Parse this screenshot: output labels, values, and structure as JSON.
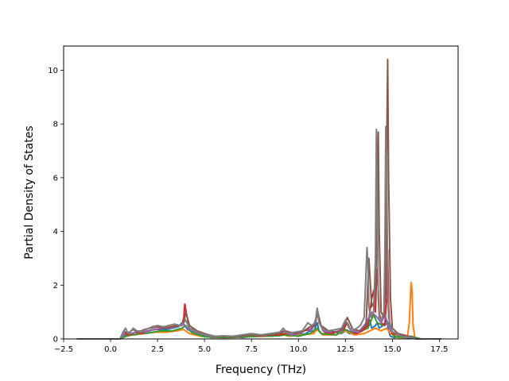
{
  "chart_data": {
    "type": "line",
    "title": "",
    "xlabel": "Frequency (THz)",
    "ylabel": "Partial Density of States",
    "xlim": [
      -2.5,
      18.5
    ],
    "ylim": [
      0,
      10.9
    ],
    "x_ticks": [
      -2.5,
      0.0,
      2.5,
      5.0,
      7.5,
      10.0,
      12.5,
      15.0,
      17.5
    ],
    "x_tick_labels": [
      "−2.5",
      "0.0",
      "2.5",
      "5.0",
      "7.5",
      "10.0",
      "12.5",
      "15.0",
      "17.5"
    ],
    "y_ticks": [
      0,
      2,
      4,
      6,
      8,
      10
    ],
    "y_tick_labels": [
      "0",
      "2",
      "4",
      "6",
      "8",
      "10"
    ],
    "grid": false,
    "legend": "none",
    "series": [
      {
        "color": "#1f77b4",
        "x": [
          -1.8,
          0.5,
          0.7,
          0.9,
          1.1,
          1.3,
          1.6,
          2.0,
          2.3,
          2.6,
          3.0,
          3.3,
          3.6,
          3.8,
          3.95,
          4.1,
          4.4,
          4.8,
          5.0,
          5.4,
          6.0,
          6.5,
          7.0,
          7.5,
          8.0,
          8.6,
          9.0,
          9.2,
          9.5,
          10.0,
          10.4,
          10.6,
          10.8,
          11.0,
          11.1,
          11.3,
          11.6,
          12.0,
          12.3,
          12.5,
          12.7,
          13.0,
          13.3,
          13.6,
          13.8,
          13.9,
          14.1,
          14.2,
          14.3,
          14.5,
          14.7,
          14.8,
          14.9,
          15.1,
          15.4,
          15.7,
          15.9,
          16.0,
          16.1,
          16.4,
          17.6
        ],
        "y": [
          0,
          0,
          0.15,
          0.1,
          0.2,
          0.15,
          0.2,
          0.3,
          0.35,
          0.35,
          0.35,
          0.4,
          0.45,
          0.6,
          0.5,
          0.35,
          0.25,
          0.15,
          0.1,
          0.05,
          0.08,
          0.1,
          0.05,
          0.1,
          0.12,
          0.1,
          0.15,
          0.2,
          0.12,
          0.15,
          0.2,
          0.3,
          0.25,
          0.6,
          0.3,
          0.15,
          0.3,
          0.25,
          0.2,
          0.3,
          0.2,
          0.2,
          0.3,
          0.5,
          0.7,
          0.4,
          0.5,
          0.6,
          0.4,
          0.5,
          0.7,
          0.3,
          0.1,
          0.05,
          0.1,
          0.05,
          0.02,
          0.05,
          0.02,
          0,
          0
        ]
      },
      {
        "color": "#ff7f0e",
        "x": [
          -1.8,
          0.5,
          0.8,
          1.2,
          1.8,
          2.4,
          3.0,
          3.5,
          3.9,
          4.2,
          4.8,
          5.5,
          6.5,
          7.5,
          8.5,
          9.0,
          9.5,
          10.2,
          10.8,
          11.0,
          11.3,
          12.0,
          12.5,
          13.0,
          13.5,
          13.8,
          14.1,
          14.4,
          14.7,
          14.9,
          15.3,
          15.8,
          15.9,
          16.0,
          16.05,
          16.1,
          16.2,
          16.5,
          17.6
        ],
        "y": [
          0,
          0,
          0.1,
          0.15,
          0.2,
          0.25,
          0.25,
          0.3,
          0.35,
          0.2,
          0.1,
          0.05,
          0.05,
          0.1,
          0.1,
          0.2,
          0.1,
          0.15,
          0.2,
          0.35,
          0.15,
          0.15,
          0.3,
          0.15,
          0.2,
          0.3,
          0.4,
          0.3,
          0.4,
          0.2,
          0.05,
          0.05,
          0.6,
          2.1,
          1.8,
          0.5,
          0.05,
          0,
          0
        ]
      },
      {
        "color": "#2ca02c",
        "x": [
          -1.8,
          0.5,
          0.9,
          1.4,
          2.0,
          2.7,
          3.3,
          3.8,
          4.0,
          4.3,
          5.0,
          6.0,
          7.0,
          8.0,
          9.0,
          9.3,
          10.0,
          10.6,
          11.0,
          11.2,
          12.0,
          12.5,
          13.0,
          13.7,
          14.0,
          14.2,
          14.5,
          14.8,
          15.1,
          15.6,
          16.0,
          16.5,
          17.6
        ],
        "y": [
          0,
          0,
          0.12,
          0.18,
          0.22,
          0.3,
          0.3,
          0.4,
          0.5,
          0.25,
          0.08,
          0.05,
          0.07,
          0.1,
          0.12,
          0.15,
          0.1,
          0.2,
          0.4,
          0.2,
          0.15,
          0.35,
          0.2,
          0.4,
          0.9,
          0.6,
          0.5,
          0.6,
          0.1,
          0.05,
          0.1,
          0,
          0
        ]
      },
      {
        "color": "#d62728",
        "x": [
          -1.8,
          0.5,
          0.7,
          1.0,
          1.3,
          1.7,
          2.0,
          2.4,
          2.8,
          3.2,
          3.5,
          3.8,
          3.9,
          3.95,
          4.05,
          4.2,
          4.5,
          4.8,
          5.0,
          5.5,
          6.0,
          6.5,
          7.0,
          7.5,
          8.0,
          8.5,
          9.0,
          9.3,
          9.7,
          10.0,
          10.3,
          10.6,
          10.9,
          11.0,
          11.1,
          11.4,
          11.8,
          12.2,
          12.4,
          12.6,
          12.8,
          13.1,
          13.4,
          13.7,
          13.9,
          14.0,
          14.05,
          14.1,
          14.15,
          14.2,
          14.25,
          14.3,
          14.4,
          14.6,
          14.7,
          14.75,
          14.8,
          14.85,
          14.9,
          15.0,
          15.3,
          15.7,
          16.0,
          16.3,
          17.6
        ],
        "y": [
          0,
          0,
          0.2,
          0.15,
          0.25,
          0.2,
          0.3,
          0.35,
          0.4,
          0.45,
          0.5,
          0.5,
          0.8,
          1.3,
          0.9,
          0.4,
          0.3,
          0.25,
          0.15,
          0.1,
          0.1,
          0.08,
          0.1,
          0.15,
          0.1,
          0.15,
          0.15,
          0.2,
          0.15,
          0.2,
          0.3,
          0.35,
          0.5,
          1.1,
          0.6,
          0.25,
          0.2,
          0.3,
          0.35,
          0.6,
          0.3,
          0.2,
          0.3,
          0.5,
          1.5,
          1.8,
          1.4,
          1.0,
          2.1,
          2.6,
          1.8,
          1.0,
          0.6,
          0.5,
          1.5,
          3.3,
          1.2,
          0.6,
          0.4,
          0.2,
          0.15,
          0.1,
          0.05,
          0,
          0
        ]
      },
      {
        "color": "#9467bd",
        "x": [
          -1.8,
          0.5,
          0.8,
          1.1,
          1.5,
          1.9,
          2.3,
          2.7,
          3.1,
          3.5,
          3.9,
          4.1,
          4.5,
          5.0,
          5.5,
          6.0,
          6.7,
          7.5,
          8.2,
          9.0,
          9.2,
          9.6,
          10.1,
          10.5,
          10.7,
          11.0,
          11.3,
          11.7,
          12.3,
          12.5,
          12.8,
          13.2,
          13.6,
          13.9,
          14.2,
          14.4,
          14.6,
          14.9,
          15.2,
          15.6,
          16.0,
          16.4,
          17.6
        ],
        "y": [
          0,
          0,
          0.25,
          0.2,
          0.3,
          0.25,
          0.35,
          0.4,
          0.4,
          0.45,
          0.55,
          0.4,
          0.25,
          0.15,
          0.08,
          0.1,
          0.08,
          0.15,
          0.12,
          0.2,
          0.3,
          0.15,
          0.2,
          0.4,
          0.3,
          0.9,
          0.3,
          0.25,
          0.3,
          0.7,
          0.3,
          0.25,
          0.6,
          1.0,
          0.8,
          0.6,
          0.9,
          0.3,
          0.2,
          0.08,
          0.05,
          0,
          0
        ]
      },
      {
        "color": "#8c564b",
        "x": [
          -1.8,
          0.5,
          0.7,
          0.9,
          1.2,
          1.5,
          1.8,
          2.1,
          2.5,
          2.9,
          3.3,
          3.7,
          3.9,
          4.0,
          4.2,
          4.6,
          5.0,
          5.5,
          6.0,
          6.8,
          7.5,
          8.2,
          9.0,
          9.3,
          9.8,
          10.2,
          10.6,
          10.9,
          11.0,
          11.2,
          11.6,
          12.0,
          12.4,
          12.6,
          12.9,
          13.3,
          13.6,
          13.75,
          13.9,
          14.1,
          14.2,
          14.25,
          14.3,
          14.4,
          14.55,
          14.65,
          14.7,
          14.75,
          14.8,
          14.9,
          15.0,
          15.3,
          15.6,
          16.0,
          16.3,
          17.6
        ],
        "y": [
          0,
          0,
          0.3,
          0.2,
          0.35,
          0.25,
          0.35,
          0.4,
          0.45,
          0.4,
          0.45,
          0.5,
          0.6,
          1.0,
          0.5,
          0.3,
          0.2,
          0.1,
          0.08,
          0.1,
          0.15,
          0.12,
          0.2,
          0.3,
          0.2,
          0.25,
          0.45,
          0.5,
          1.1,
          0.5,
          0.3,
          0.25,
          0.4,
          0.8,
          0.35,
          0.3,
          0.5,
          3.0,
          1.2,
          1.5,
          5.0,
          7.7,
          4.0,
          1.0,
          0.8,
          2.0,
          7.0,
          10.4,
          6.0,
          1.5,
          0.4,
          0.2,
          0.15,
          0.08,
          0,
          0
        ]
      },
      {
        "color": "#7f7f7f",
        "x": [
          -1.8,
          0.5,
          0.7,
          0.8,
          0.9,
          1.0,
          1.2,
          1.4,
          1.6,
          1.9,
          2.2,
          2.5,
          2.8,
          3.1,
          3.4,
          3.7,
          3.9,
          4.0,
          4.2,
          4.5,
          4.8,
          5.2,
          5.6,
          6.0,
          6.5,
          7.0,
          7.5,
          8.0,
          8.5,
          9.0,
          9.2,
          9.4,
          9.8,
          10.2,
          10.5,
          10.7,
          10.9,
          11.0,
          11.1,
          11.3,
          11.6,
          12.0,
          12.3,
          12.5,
          12.7,
          13.0,
          13.3,
          13.5,
          13.65,
          13.7,
          13.75,
          13.85,
          14.0,
          14.1,
          14.15,
          14.2,
          14.25,
          14.3,
          14.4,
          14.55,
          14.6,
          14.65,
          14.7,
          14.75,
          14.8,
          14.9,
          15.0,
          15.2,
          15.5,
          15.8,
          16.0,
          16.3,
          16.6,
          17.6
        ],
        "y": [
          0,
          0,
          0.3,
          0.4,
          0.25,
          0.2,
          0.4,
          0.3,
          0.25,
          0.35,
          0.45,
          0.5,
          0.45,
          0.5,
          0.55,
          0.5,
          0.6,
          0.7,
          0.4,
          0.3,
          0.2,
          0.15,
          0.1,
          0.12,
          0.1,
          0.15,
          0.2,
          0.15,
          0.2,
          0.25,
          0.4,
          0.2,
          0.25,
          0.3,
          0.6,
          0.5,
          0.6,
          1.15,
          0.6,
          0.35,
          0.3,
          0.35,
          0.4,
          0.7,
          0.4,
          0.35,
          0.5,
          0.8,
          3.4,
          2.8,
          1.2,
          0.8,
          1.0,
          3.0,
          7.8,
          5.0,
          1.5,
          0.8,
          0.7,
          1.0,
          3.0,
          7.9,
          6.5,
          2.0,
          0.8,
          0.5,
          0.25,
          0.2,
          0.1,
          0.08,
          0.05,
          0.02,
          0,
          0
        ]
      }
    ]
  }
}
